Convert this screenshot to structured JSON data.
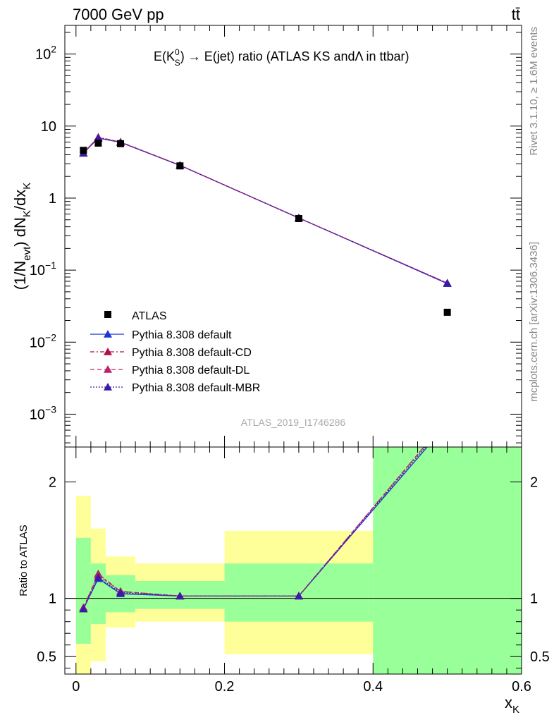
{
  "header": {
    "energy_label": "7000 GeV pp",
    "process_label": "tt̄"
  },
  "side_labels": {
    "rivet": "Rivet 3.1.10, ≥ 1.6M events",
    "mcplots": "mcplots.cern.ch [arXiv:1306.3436]"
  },
  "chart_data": [
    {
      "type": "line",
      "title": "E(K⁰S) → E(jet) ratio (ATLAS KS and Λ in ttbar)",
      "title_parts": {
        "pre": "E(K",
        "sup": "0",
        "sub": "S",
        "post": ") → E(jet) ratio (ATLAS KS andΛ in ttbar)"
      },
      "ylabel": "(1/Nevt) dNK/dxK",
      "yscale": "log",
      "ylim": [
        0.00035,
        250
      ],
      "xlim": [
        -0.015,
        0.6
      ],
      "y_ticks": [
        {
          "value": 0.001,
          "base": "10",
          "exp": "−3"
        },
        {
          "value": 0.01,
          "base": "10",
          "exp": "−2"
        },
        {
          "value": 0.1,
          "base": "10",
          "exp": "−1"
        },
        {
          "value": 1,
          "label": "1"
        },
        {
          "value": 10,
          "label": "10"
        },
        {
          "value": 100,
          "base": "10",
          "exp": "2"
        }
      ],
      "watermark": "ATLAS_2019_I1746286",
      "legend_placement": "lower-left",
      "data": {
        "name": "ATLAS",
        "x": [
          0.01,
          0.03,
          0.06,
          0.14,
          0.3,
          0.5
        ],
        "y": [
          4.6,
          5.8,
          5.7,
          2.8,
          0.52,
          0.026
        ]
      },
      "series": [
        {
          "name": "Pythia 8.308 default",
          "color": "#1f35d4",
          "dash": "",
          "x": [
            0.01,
            0.03,
            0.06,
            0.14,
            0.3,
            0.5
          ],
          "y": [
            4.2,
            6.8,
            5.95,
            2.85,
            0.53,
            0.065
          ]
        },
        {
          "name": "Pythia 8.308 default-CD",
          "color": "#b0104a",
          "dash": "6 3 2 3",
          "x": [
            0.01,
            0.03,
            0.06,
            0.14,
            0.3,
            0.5
          ],
          "y": [
            4.25,
            7.0,
            6.0,
            2.85,
            0.53,
            0.066
          ]
        },
        {
          "name": "Pythia 8.308 default-DL",
          "color": "#c0206a",
          "dash": "6 4",
          "x": [
            0.01,
            0.03,
            0.06,
            0.14,
            0.3,
            0.5
          ],
          "y": [
            4.25,
            6.95,
            6.0,
            2.86,
            0.53,
            0.066
          ]
        },
        {
          "name": "Pythia 8.308 default-MBR",
          "color": "#3a1aa8",
          "dash": "2 2",
          "x": [
            0.01,
            0.03,
            0.06,
            0.14,
            0.3,
            0.5
          ],
          "y": [
            4.2,
            6.85,
            5.95,
            2.85,
            0.53,
            0.066
          ]
        }
      ]
    },
    {
      "type": "line",
      "ylabel": "Ratio to ATLAS",
      "xlabel": "xK",
      "xlabel_parts": {
        "main": "x",
        "sub": "K"
      },
      "ylim": [
        0.35,
        2.3
      ],
      "xlim": [
        -0.015,
        0.6
      ],
      "y_ticks": [
        0.5,
        1,
        2
      ],
      "y_tick_labels": [
        "0.5",
        "1",
        "2"
      ],
      "x_ticks": [
        0,
        0.2,
        0.4,
        0.6
      ],
      "x_tick_labels": [
        "0",
        "0.2",
        "0.4",
        "0.6"
      ],
      "bands": {
        "bins": [
          [
            0,
            0.02
          ],
          [
            0.02,
            0.04
          ],
          [
            0.04,
            0.08
          ],
          [
            0.08,
            0.2
          ],
          [
            0.2,
            0.4
          ],
          [
            0.4,
            0.6
          ]
        ],
        "yellow": [
          [
            0.35,
            1.88
          ],
          [
            0.46,
            1.6
          ],
          [
            0.75,
            1.36
          ],
          [
            0.8,
            1.3
          ],
          [
            0.52,
            1.58
          ],
          [
            0.35,
            2.3
          ]
        ],
        "green": [
          [
            0.61,
            1.52
          ],
          [
            0.78,
            1.3
          ],
          [
            0.88,
            1.2
          ],
          [
            0.91,
            1.15
          ],
          [
            0.8,
            1.3
          ],
          [
            0.35,
            2.3
          ]
        ]
      },
      "series": [
        {
          "name": "Pythia 8.308 default",
          "x": [
            0.01,
            0.03,
            0.06,
            0.14,
            0.3,
            0.5
          ],
          "y": [
            0.91,
            1.17,
            1.04,
            1.02,
            1.02,
            2.5
          ]
        },
        {
          "name": "Pythia 8.308 default-CD",
          "x": [
            0.01,
            0.03,
            0.06,
            0.14,
            0.3,
            0.5
          ],
          "y": [
            0.92,
            1.21,
            1.06,
            1.02,
            1.02,
            2.54
          ]
        },
        {
          "name": "Pythia 8.308 default-DL",
          "x": [
            0.01,
            0.03,
            0.06,
            0.14,
            0.3,
            0.5
          ],
          "y": [
            0.92,
            1.2,
            1.06,
            1.02,
            1.02,
            2.54
          ]
        },
        {
          "name": "Pythia 8.308 default-MBR",
          "x": [
            0.01,
            0.03,
            0.06,
            0.14,
            0.3,
            0.5
          ],
          "y": [
            0.91,
            1.18,
            1.05,
            1.02,
            1.02,
            2.52
          ]
        }
      ]
    }
  ]
}
